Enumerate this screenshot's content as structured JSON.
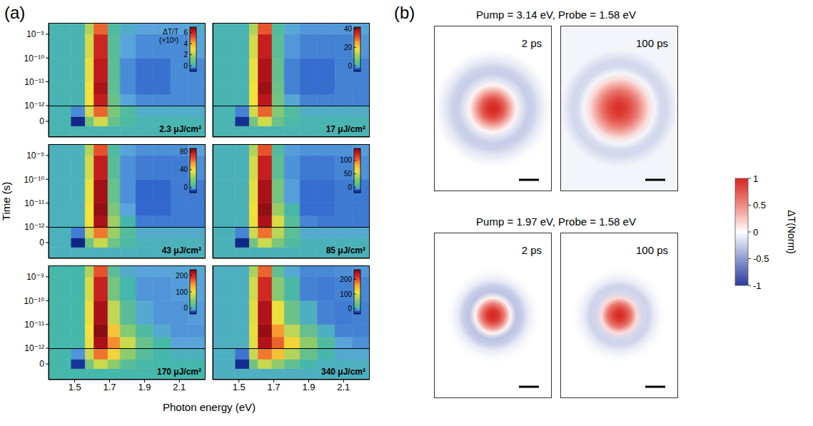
{
  "chart_data": {
    "type": "heatmap_grid",
    "label": "(a)",
    "x_label": "Photon energy (eV)",
    "y_label": "Time (s)",
    "log": "y",
    "xlim": [
      1.35,
      2.25
    ],
    "xticks": [
      1.5,
      1.7,
      1.9,
      2.1
    ],
    "ylim": [
      1e-12,
      3e-09
    ],
    "yticks": [
      {
        "value": 1e-09,
        "label": "10⁻⁹"
      },
      {
        "value": 1e-10,
        "label": "10⁻¹⁰"
      },
      {
        "value": 1e-11,
        "label": "10⁻¹¹"
      },
      {
        "value": 1e-12,
        "label": "10⁻¹²"
      }
    ],
    "y2lim": [
      -1e-12,
      1e-12
    ],
    "y2ticks": [
      0
    ],
    "x_edges": [
      1.35,
      1.48,
      1.56,
      1.61,
      1.69,
      1.76,
      1.85,
      1.95,
      2.05,
      2.15,
      2.25
    ],
    "y_edges": [
      1e-12,
      3e-12,
      1e-11,
      1e-10,
      1e-09,
      3e-09
    ],
    "y2_edges": [
      -1e-12,
      -3e-13,
      3e-13,
      1e-12
    ],
    "panels": [
      {
        "title": "2.3 μJ/cm²",
        "tick_labels": "y",
        "colorbar_label": "ΔT/T (×10³)",
        "zlim": [
          -1,
          7
        ],
        "zticks": [
          0,
          2,
          4,
          6
        ],
        "cells_y2": [
          [
            0,
            0,
            0,
            0,
            0,
            0,
            0,
            0,
            0,
            0
          ],
          [
            0,
            -0.9,
            1.0,
            2.5,
            0.8,
            0.2,
            0,
            0,
            0,
            0
          ],
          [
            0,
            -0.3,
            2.5,
            5,
            1.2,
            0.3,
            -0.1,
            -0.1,
            -0.1,
            -0.1
          ]
        ],
        "cells": [
          [
            0,
            0,
            3,
            6.2,
            0.8,
            -0.2,
            -0.3,
            -0.3,
            -0.3,
            -0.3
          ],
          [
            0,
            0,
            3,
            6.5,
            0.6,
            -0.3,
            -0.4,
            -0.4,
            -0.3,
            -0.3
          ],
          [
            0,
            0,
            2.8,
            6.3,
            0.5,
            -0.3,
            -0.4,
            -0.4,
            -0.3,
            -0.3
          ],
          [
            0,
            0,
            2.5,
            6,
            0.4,
            -0.2,
            -0.3,
            -0.3,
            -0.3,
            -0.2
          ],
          [
            0,
            0,
            2,
            5,
            0.3,
            -0.1,
            -0.2,
            -0.2,
            -0.2,
            -0.1
          ]
        ]
      },
      {
        "title": "17 μJ/cm²",
        "tick_labels": false,
        "zlim": [
          -6,
          42
        ],
        "zticks": [
          0,
          20,
          40
        ],
        "cells_y2": [
          [
            0,
            0,
            0,
            0,
            0,
            0,
            0,
            0,
            0,
            0
          ],
          [
            0,
            -5,
            6,
            15,
            5,
            1,
            0,
            0,
            0,
            0
          ],
          [
            0,
            -2,
            15,
            30,
            8,
            2,
            -0.5,
            -0.5,
            -0.5,
            -0.5
          ]
        ],
        "cells": [
          [
            0,
            0,
            18,
            38,
            6,
            -1,
            -2,
            -2,
            -2,
            -2
          ],
          [
            0,
            0,
            18,
            40,
            5,
            -2,
            -2.5,
            -2.5,
            -2,
            -2
          ],
          [
            0,
            0,
            17,
            39,
            4,
            -2,
            -2.5,
            -2.5,
            -2,
            -2
          ],
          [
            0,
            0,
            15,
            37,
            3,
            -1.5,
            -2,
            -2,
            -2,
            -1.5
          ],
          [
            0,
            0,
            12,
            31,
            2,
            -1,
            -1.5,
            -1.5,
            -1.5,
            -1
          ]
        ]
      },
      {
        "title": "43 μJ/cm²",
        "tick_labels": "y",
        "zlim": [
          -12,
          88
        ],
        "zticks": [
          0,
          40,
          80
        ],
        "cells_y2": [
          [
            0,
            0,
            0,
            0,
            0,
            0,
            0,
            0,
            0,
            0
          ],
          [
            0,
            -11,
            12,
            30,
            12,
            3,
            0,
            0,
            0,
            0
          ],
          [
            0,
            -4,
            30,
            60,
            22,
            5,
            -1,
            -1,
            -1,
            -1
          ]
        ],
        "cells": [
          [
            0,
            0,
            38,
            82,
            22,
            1,
            -4,
            -4,
            -4,
            -4
          ],
          [
            0,
            0,
            38,
            85,
            15,
            -2,
            -5,
            -5,
            -4,
            -4
          ],
          [
            0,
            0,
            36,
            83,
            10,
            -3,
            -5,
            -5,
            -4,
            -4
          ],
          [
            0,
            0,
            32,
            78,
            6,
            -3,
            -4,
            -4,
            -4,
            -3
          ],
          [
            0,
            0,
            26,
            66,
            4,
            -2,
            -3,
            -3,
            -3,
            -2
          ]
        ]
      },
      {
        "title": "85 μJ/cm²",
        "tick_labels": false,
        "zlim": [
          -20,
          145
        ],
        "zticks": [
          0,
          50,
          100
        ],
        "cells_y2": [
          [
            0,
            0,
            0,
            0,
            0,
            0,
            0,
            0,
            0,
            0
          ],
          [
            0,
            -18,
            20,
            50,
            25,
            6,
            0,
            0,
            0,
            0
          ],
          [
            0,
            -6,
            50,
            100,
            45,
            12,
            -2,
            -2,
            -2,
            -2
          ]
        ],
        "cells": [
          [
            0,
            0,
            60,
            135,
            55,
            10,
            -6,
            -7,
            -7,
            -7
          ],
          [
            0,
            0,
            62,
            140,
            35,
            2,
            -8,
            -8,
            -7,
            -7
          ],
          [
            0,
            0,
            58,
            136,
            22,
            -4,
            -8,
            -8,
            -7,
            -7
          ],
          [
            0,
            0,
            52,
            128,
            12,
            -5,
            -7,
            -7,
            -6,
            -5
          ],
          [
            0,
            0,
            42,
            108,
            7,
            -4,
            -5,
            -5,
            -5,
            -4
          ]
        ]
      },
      {
        "title": "170 μJ/cm²",
        "tick_labels": true,
        "zlim": [
          -35,
          235
        ],
        "zticks": [
          0,
          100,
          200
        ],
        "cells_y2": [
          [
            0,
            0,
            0,
            0,
            0,
            0,
            0,
            0,
            0,
            0
          ],
          [
            0,
            -28,
            35,
            80,
            50,
            15,
            2,
            0,
            0,
            0
          ],
          [
            0,
            -10,
            80,
            160,
            110,
            50,
            12,
            0,
            -3,
            -3
          ]
        ],
        "cells": [
          [
            0,
            0,
            95,
            220,
            150,
            80,
            25,
            2,
            -8,
            -8
          ],
          [
            0,
            0,
            100,
            230,
            120,
            45,
            8,
            -6,
            -10,
            -10
          ],
          [
            0,
            0,
            95,
            220,
            75,
            15,
            -6,
            -10,
            -10,
            -9
          ],
          [
            0,
            0,
            85,
            205,
            35,
            0,
            -10,
            -10,
            -9,
            -8
          ],
          [
            0,
            0,
            68,
            175,
            15,
            -5,
            -8,
            -8,
            -7,
            -6
          ]
        ]
      },
      {
        "title": "340 μJ/cm²",
        "tick_labels": "x",
        "zlim": [
          -35,
          265
        ],
        "zticks": [
          0,
          100,
          200
        ],
        "cells_y2": [
          [
            0,
            0,
            0,
            0,
            0,
            0,
            0,
            0,
            0,
            0
          ],
          [
            0,
            -30,
            40,
            90,
            60,
            25,
            5,
            0,
            0,
            0
          ],
          [
            0,
            -12,
            90,
            180,
            140,
            80,
            30,
            5,
            -3,
            -3
          ]
        ],
        "cells": [
          [
            0,
            0,
            105,
            245,
            190,
            125,
            60,
            15,
            -5,
            -8
          ],
          [
            0,
            0,
            110,
            255,
            165,
            85,
            30,
            0,
            -10,
            -10
          ],
          [
            0,
            0,
            105,
            245,
            110,
            35,
            0,
            -10,
            -11,
            -10
          ],
          [
            0,
            0,
            95,
            225,
            55,
            8,
            -10,
            -11,
            -10,
            -9
          ],
          [
            0,
            0,
            75,
            190,
            25,
            -3,
            -9,
            -9,
            -8,
            -7
          ]
        ]
      }
    ]
  },
  "images": {
    "label": "(b)",
    "r": [
      0,
      0.1,
      0.2,
      0.3,
      0.4,
      0.5,
      0.6,
      0.7,
      0.8,
      0.9,
      1.0
    ],
    "colorbar": {
      "label": "ΔT(Norm)",
      "range": [
        -1,
        1
      ],
      "ticks": [
        1,
        0.5,
        0,
        -0.5,
        -1
      ]
    },
    "rows": [
      {
        "title": "Pump = 3.14 eV, Probe = 1.58 eV",
        "frames": [
          {
            "time": "2 ps",
            "values": [
              1,
              0.92,
              0.7,
              0.35,
              0.05,
              -0.15,
              -0.25,
              -0.22,
              -0.12,
              -0.05,
              0
            ]
          },
          {
            "time": "100 ps",
            "values": [
              0.95,
              0.9,
              0.78,
              0.6,
              0.38,
              0.15,
              -0.05,
              -0.18,
              -0.2,
              -0.12,
              -0.05
            ]
          }
        ]
      },
      {
        "title": "Pump = 1.97 eV, Probe = 1.58 eV",
        "frames": [
          {
            "time": "2 ps",
            "values": [
              1,
              0.9,
              0.55,
              0.05,
              -0.3,
              -0.25,
              -0.1,
              -0.03,
              0,
              0,
              0
            ]
          },
          {
            "time": "100 ps",
            "values": [
              1,
              0.88,
              0.6,
              0.15,
              -0.2,
              -0.22,
              -0.1,
              -0.03,
              0,
              0,
              0
            ]
          }
        ]
      }
    ]
  }
}
